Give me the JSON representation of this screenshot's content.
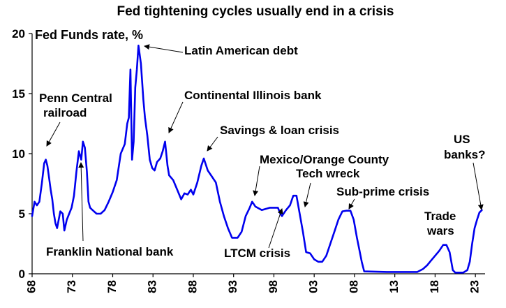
{
  "chart_data": {
    "type": "line",
    "title": "Fed tightening cycles usually end in a crisis",
    "ylabel": "Fed Funds rate, %",
    "xlabel": "",
    "xlim": [
      1968,
      2024.2
    ],
    "ylim": [
      0,
      20
    ],
    "x_ticks": [
      {
        "x": 1968,
        "label": "68"
      },
      {
        "x": 1973,
        "label": "73"
      },
      {
        "x": 1978,
        "label": "78"
      },
      {
        "x": 1983,
        "label": "83"
      },
      {
        "x": 1988,
        "label": "88"
      },
      {
        "x": 1993,
        "label": "93"
      },
      {
        "x": 1998,
        "label": "98"
      },
      {
        "x": 2003,
        "label": "03"
      },
      {
        "x": 2008,
        "label": "08"
      },
      {
        "x": 2013,
        "label": "13"
      },
      {
        "x": 2018,
        "label": "18"
      },
      {
        "x": 2023,
        "label": "23"
      }
    ],
    "y_ticks": [
      {
        "y": 0,
        "label": "0"
      },
      {
        "y": 5,
        "label": "5"
      },
      {
        "y": 10,
        "label": "10"
      },
      {
        "y": 15,
        "label": "15"
      },
      {
        "y": 20,
        "label": "20"
      }
    ],
    "line_color": "#0000ee",
    "grid": false,
    "series": [
      {
        "x": [
          1968.0,
          1968.3,
          1968.6,
          1968.9,
          1969.2,
          1969.5,
          1969.7,
          1969.9,
          1970.1,
          1970.3,
          1970.5,
          1970.7,
          1970.9,
          1971.1,
          1971.3,
          1971.5,
          1971.8,
          1972.0,
          1972.3,
          1972.6,
          1972.9,
          1973.2,
          1973.5,
          1973.8,
          1974.1,
          1974.3,
          1974.55,
          1974.8,
          1975.0,
          1975.2,
          1975.5,
          1976.0,
          1976.5,
          1977.0,
          1977.5,
          1978.0,
          1978.5,
          1979.0,
          1979.5,
          1979.8,
          1980.0,
          1980.2,
          1980.4,
          1980.6,
          1980.8,
          1981.0,
          1981.2,
          1981.5,
          1981.8,
          1982.0,
          1982.3,
          1982.6,
          1982.9,
          1983.2,
          1983.5,
          1983.9,
          1984.2,
          1984.5,
          1984.8,
          1985.0,
          1985.5,
          1986.0,
          1986.5,
          1986.9,
          1987.3,
          1987.7,
          1988.0,
          1988.5,
          1989.0,
          1989.3,
          1989.8,
          1990.2,
          1990.8,
          1991.3,
          1991.8,
          1992.3,
          1992.8,
          1993.5,
          1994.0,
          1994.5,
          1995.0,
          1995.3,
          1995.7,
          1996.5,
          1997.5,
          1998.5,
          1998.8,
          1999.0,
          1999.5,
          2000.0,
          2000.4,
          2000.8,
          2001.2,
          2001.6,
          2002.0,
          2002.5,
          2003.0,
          2003.5,
          2004.0,
          2004.5,
          2005.0,
          2005.5,
          2006.0,
          2006.5,
          2007.0,
          2007.5,
          2007.9,
          2008.3,
          2008.6,
          2008.9,
          2009.2,
          2012.0,
          2015.8,
          2016.5,
          2017.0,
          2017.5,
          2018.0,
          2018.5,
          2019.0,
          2019.4,
          2019.8,
          2020.2,
          2020.5,
          2021.5,
          2022.0,
          2022.3,
          2022.6,
          2022.9,
          2023.2,
          2023.5,
          2023.8
        ],
        "y": [
          4.8,
          6.0,
          5.7,
          6.0,
          7.5,
          9.2,
          9.5,
          9.0,
          8.0,
          7.0,
          6.2,
          5.0,
          4.2,
          3.8,
          4.5,
          5.2,
          5.0,
          3.6,
          4.5,
          5.0,
          5.5,
          6.5,
          8.5,
          10.2,
          9.5,
          11.0,
          10.5,
          8.5,
          6.0,
          5.5,
          5.3,
          5.0,
          5.0,
          5.3,
          6.0,
          6.8,
          7.8,
          10.0,
          10.8,
          12.5,
          13.0,
          17.0,
          9.5,
          11.0,
          15.5,
          17.0,
          19.0,
          17.5,
          14.5,
          13.0,
          11.5,
          9.5,
          8.8,
          8.6,
          9.3,
          9.6,
          10.2,
          11.0,
          9.0,
          8.2,
          7.8,
          7.0,
          6.2,
          6.7,
          6.6,
          7.0,
          6.6,
          7.6,
          9.0,
          9.6,
          8.6,
          8.2,
          7.6,
          6.0,
          4.8,
          3.8,
          3.0,
          3.0,
          3.5,
          4.8,
          5.5,
          6.0,
          5.6,
          5.3,
          5.5,
          5.5,
          5.0,
          4.8,
          5.3,
          5.7,
          6.5,
          6.5,
          5.0,
          3.5,
          1.8,
          1.7,
          1.2,
          1.0,
          1.0,
          1.5,
          2.5,
          3.5,
          4.5,
          5.2,
          5.25,
          5.25,
          4.5,
          3.0,
          2.0,
          1.0,
          0.2,
          0.15,
          0.15,
          0.4,
          0.7,
          1.1,
          1.5,
          1.9,
          2.4,
          2.4,
          1.8,
          0.3,
          0.1,
          0.1,
          0.3,
          1.0,
          2.5,
          3.8,
          4.5,
          5.1,
          5.3
        ]
      }
    ],
    "annotations": [
      {
        "label": "Penn Central"
      },
      {
        "label": "railroad"
      },
      {
        "label": "Franklin National bank"
      },
      {
        "label": "Latin American debt"
      },
      {
        "label": "Continental Illinois bank"
      },
      {
        "label": "Savings & loan crisis"
      },
      {
        "label": "Mexico/Orange County"
      },
      {
        "label": "Tech wreck"
      },
      {
        "label": "LTCM crisis"
      },
      {
        "label": "Sub-prime crisis"
      },
      {
        "label": "Trade"
      },
      {
        "label": "wars"
      },
      {
        "label": "US"
      },
      {
        "label": "banks?"
      }
    ]
  }
}
